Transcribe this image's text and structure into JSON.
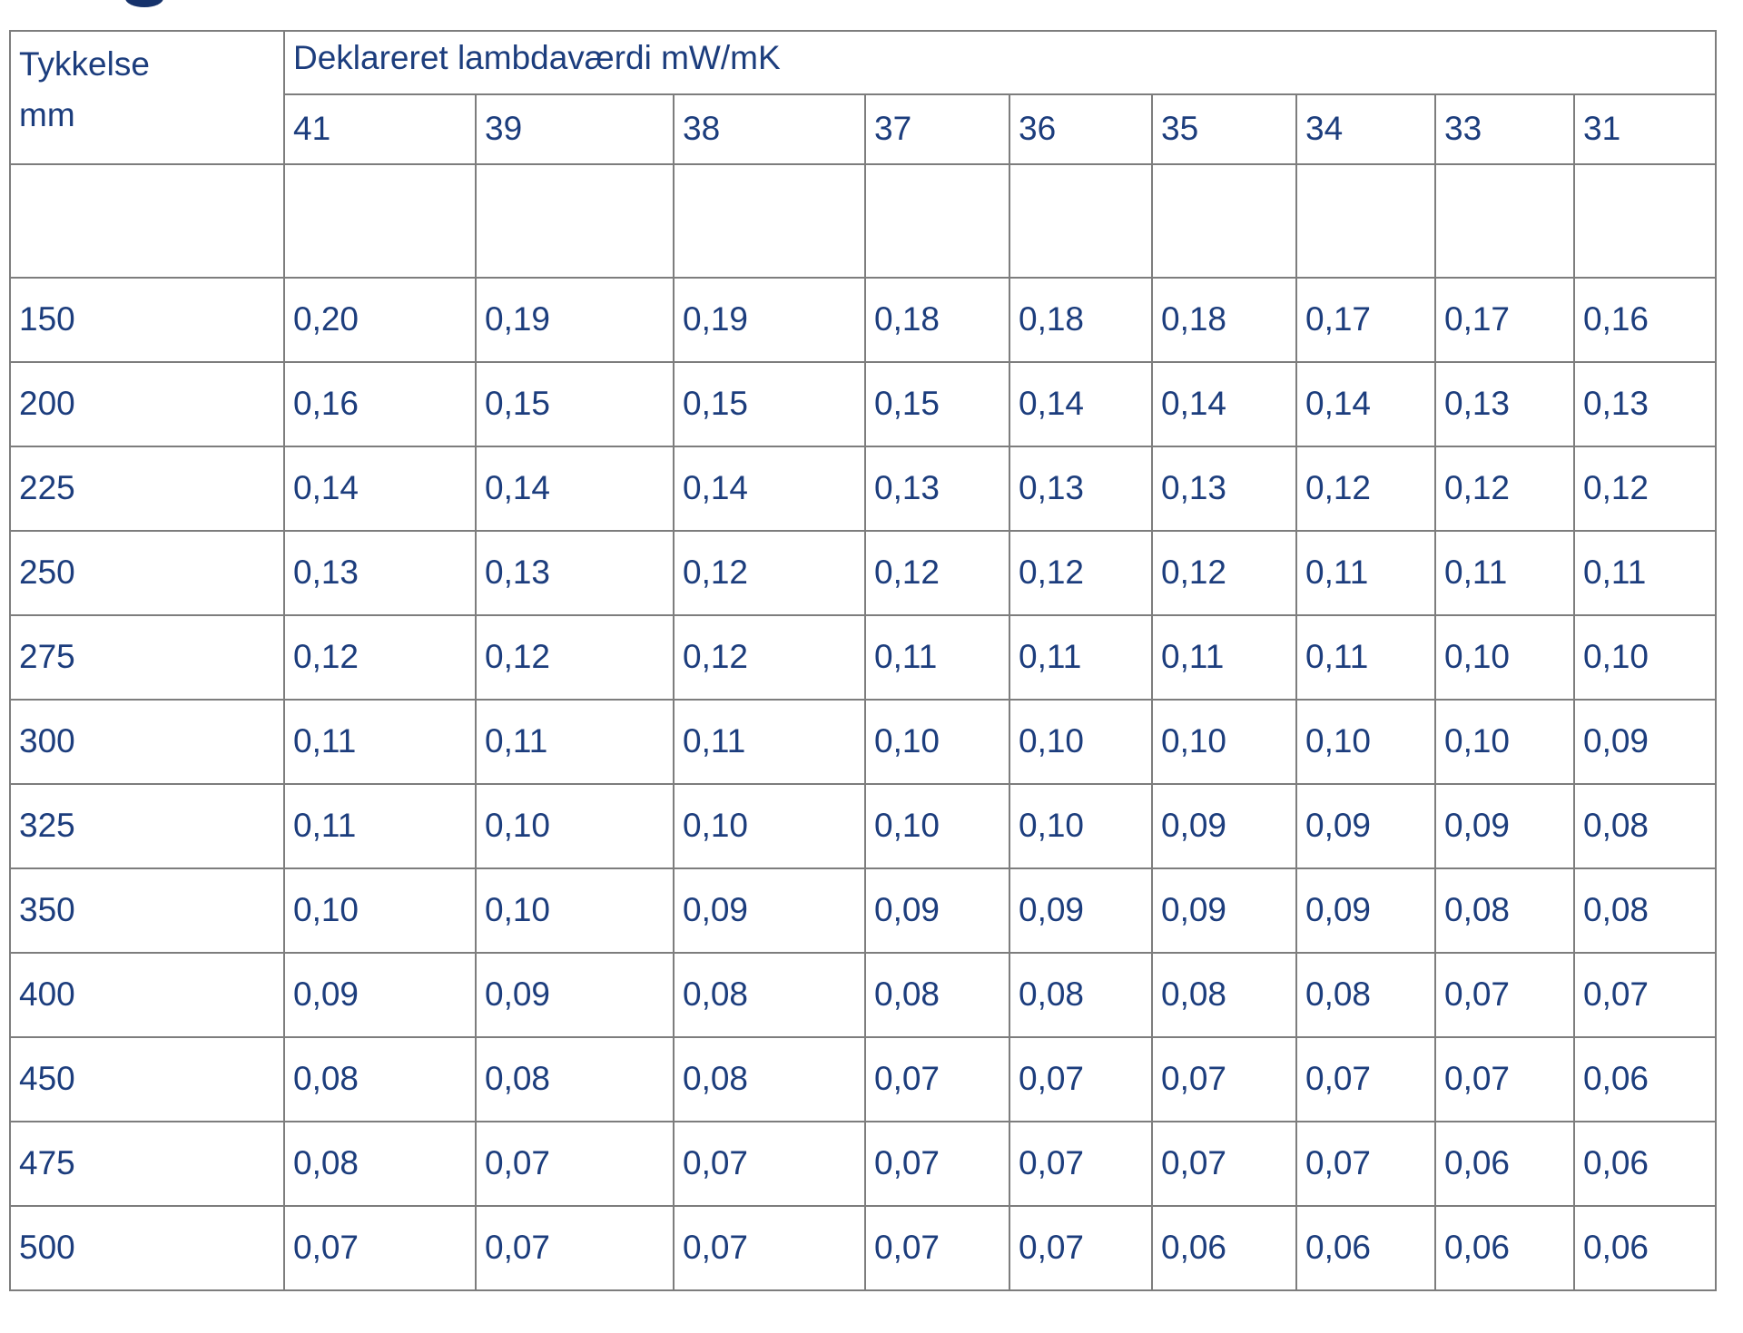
{
  "table": {
    "corner_header": {
      "line1": "Tykkelse",
      "line2": "mm"
    },
    "group_header": "Deklareret lambdaværdi mW/mK",
    "lambda_columns": [
      "41",
      "39",
      "38",
      "37",
      "36",
      "35",
      "34",
      "33",
      "31"
    ],
    "rows": [
      {
        "thickness": "150",
        "values": [
          "0,20",
          "0,19",
          "0,19",
          "0,18",
          "0,18",
          "0,18",
          "0,17",
          "0,17",
          "0,16"
        ]
      },
      {
        "thickness": "200",
        "values": [
          "0,16",
          "0,15",
          "0,15",
          "0,15",
          "0,14",
          "0,14",
          "0,14",
          "0,13",
          "0,13"
        ]
      },
      {
        "thickness": "225",
        "values": [
          "0,14",
          "0,14",
          "0,14",
          "0,13",
          "0,13",
          "0,13",
          "0,12",
          "0,12",
          "0,12"
        ]
      },
      {
        "thickness": "250",
        "values": [
          "0,13",
          "0,13",
          "0,12",
          "0,12",
          "0,12",
          "0,12",
          "0,11",
          "0,11",
          "0,11"
        ]
      },
      {
        "thickness": "275",
        "values": [
          "0,12",
          "0,12",
          "0,12",
          "0,11",
          "0,11",
          "0,11",
          "0,11",
          "0,10",
          "0,10"
        ]
      },
      {
        "thickness": "300",
        "values": [
          "0,11",
          "0,11",
          "0,11",
          "0,10",
          "0,10",
          "0,10",
          "0,10",
          "0,10",
          "0,09"
        ]
      },
      {
        "thickness": "325",
        "values": [
          "0,11",
          "0,10",
          "0,10",
          "0,10",
          "0,10",
          "0,09",
          "0,09",
          "0,09",
          "0,08"
        ]
      },
      {
        "thickness": "350",
        "values": [
          "0,10",
          "0,10",
          "0,09",
          "0,09",
          "0,09",
          "0,09",
          "0,09",
          "0,08",
          "0,08"
        ]
      },
      {
        "thickness": "400",
        "values": [
          "0,09",
          "0,09",
          "0,08",
          "0,08",
          "0,08",
          "0,08",
          "0,08",
          "0,07",
          "0,07"
        ]
      },
      {
        "thickness": "450",
        "values": [
          "0,08",
          "0,08",
          "0,08",
          "0,07",
          "0,07",
          "0,07",
          "0,07",
          "0,07",
          "0,06"
        ]
      },
      {
        "thickness": "475",
        "values": [
          "0,08",
          "0,07",
          "0,07",
          "0,07",
          "0,07",
          "0,07",
          "0,07",
          "0,06",
          "0,06"
        ]
      },
      {
        "thickness": "500",
        "values": [
          "0,07",
          "0,07",
          "0,07",
          "0,07",
          "0,07",
          "0,06",
          "0,06",
          "0,06",
          "0,06"
        ]
      }
    ],
    "colors": {
      "text": "#1c3d7d",
      "border": "#7d7d7d",
      "background": "#ffffff"
    }
  },
  "chart_data": {
    "type": "table",
    "title": "Deklareret lambdaværdi mW/mK",
    "row_header_label": "Tykkelse mm",
    "columns": [
      "41",
      "39",
      "38",
      "37",
      "36",
      "35",
      "34",
      "33",
      "31"
    ],
    "row_labels": [
      "150",
      "200",
      "225",
      "250",
      "275",
      "300",
      "325",
      "350",
      "400",
      "450",
      "475",
      "500"
    ],
    "values": [
      [
        0.2,
        0.19,
        0.19,
        0.18,
        0.18,
        0.18,
        0.17,
        0.17,
        0.16
      ],
      [
        0.16,
        0.15,
        0.15,
        0.15,
        0.14,
        0.14,
        0.14,
        0.13,
        0.13
      ],
      [
        0.14,
        0.14,
        0.14,
        0.13,
        0.13,
        0.13,
        0.12,
        0.12,
        0.12
      ],
      [
        0.13,
        0.13,
        0.12,
        0.12,
        0.12,
        0.12,
        0.11,
        0.11,
        0.11
      ],
      [
        0.12,
        0.12,
        0.12,
        0.11,
        0.11,
        0.11,
        0.11,
        0.1,
        0.1
      ],
      [
        0.11,
        0.11,
        0.11,
        0.1,
        0.1,
        0.1,
        0.1,
        0.1,
        0.09
      ],
      [
        0.11,
        0.1,
        0.1,
        0.1,
        0.1,
        0.09,
        0.09,
        0.09,
        0.08
      ],
      [
        0.1,
        0.1,
        0.09,
        0.09,
        0.09,
        0.09,
        0.09,
        0.08,
        0.08
      ],
      [
        0.09,
        0.09,
        0.08,
        0.08,
        0.08,
        0.08,
        0.08,
        0.07,
        0.07
      ],
      [
        0.08,
        0.08,
        0.08,
        0.07,
        0.07,
        0.07,
        0.07,
        0.07,
        0.06
      ],
      [
        0.08,
        0.07,
        0.07,
        0.07,
        0.07,
        0.07,
        0.07,
        0.06,
        0.06
      ],
      [
        0.07,
        0.07,
        0.07,
        0.07,
        0.07,
        0.06,
        0.06,
        0.06,
        0.06
      ]
    ]
  }
}
